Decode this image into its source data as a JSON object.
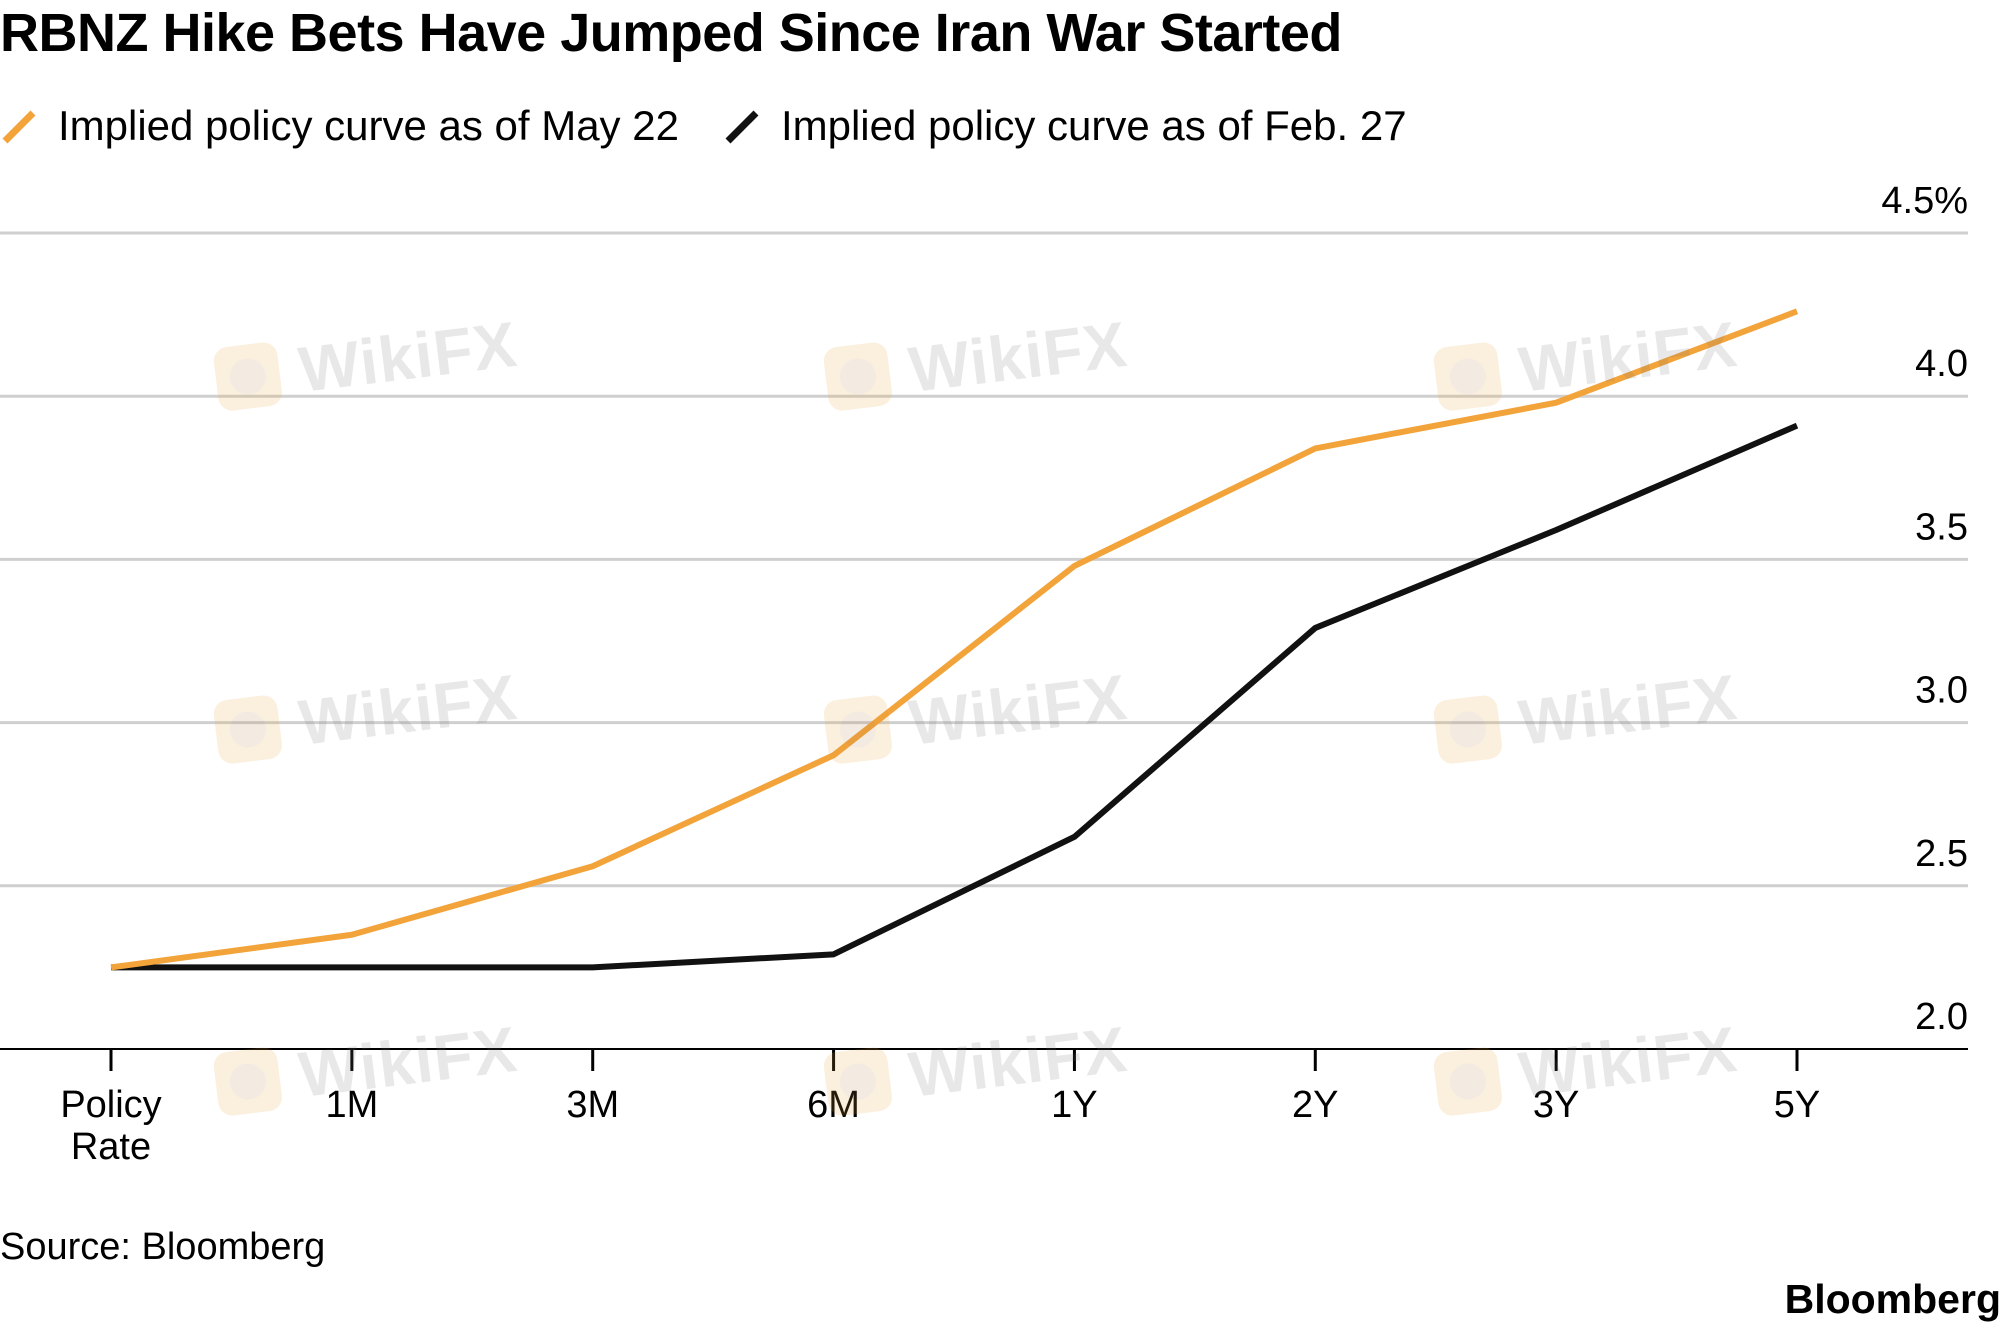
{
  "title": "RBNZ Hike Bets Have Jumped Since Iran War Started",
  "source": "Source: Bloomberg",
  "brand": "Bloomberg",
  "watermark_text": "WikiFX",
  "colors": {
    "may22": "#f2a33a",
    "feb27": "#111111",
    "grid": "#cfcfcf",
    "axis": "#000000"
  },
  "chart_data": {
    "type": "line",
    "title": "RBNZ Hike Bets Have Jumped Since Iran War Started",
    "categories": [
      "Policy Rate",
      "1M",
      "3M",
      "6M",
      "1Y",
      "2Y",
      "3Y",
      "5Y"
    ],
    "category_lines": [
      [
        "Policy",
        "Rate"
      ],
      [
        "1M"
      ],
      [
        "3M"
      ],
      [
        "6M"
      ],
      [
        "1Y"
      ],
      [
        "2Y"
      ],
      [
        "3Y"
      ],
      [
        "5Y"
      ]
    ],
    "series": [
      {
        "name": "Implied policy curve as of May 22",
        "color_key": "may22",
        "values": [
          2.25,
          2.35,
          2.56,
          2.9,
          3.48,
          3.84,
          3.98,
          4.26
        ]
      },
      {
        "name": "Implied policy curve as of Feb. 27",
        "color_key": "feb27",
        "values": [
          2.25,
          2.25,
          2.25,
          2.29,
          2.65,
          3.29,
          3.59,
          3.91
        ]
      }
    ],
    "y_ticks": [
      2.0,
      2.5,
      3.0,
      3.5,
      4.0,
      4.5
    ],
    "y_tick_labels": [
      "2.0",
      "2.5",
      "3.0",
      "3.5",
      "4.0",
      "4.5%"
    ],
    "ylim": [
      2.0,
      4.5
    ],
    "y_axis_side": "right",
    "grid": true,
    "legend_position": "top-left",
    "xlabel": "",
    "ylabel": ""
  }
}
